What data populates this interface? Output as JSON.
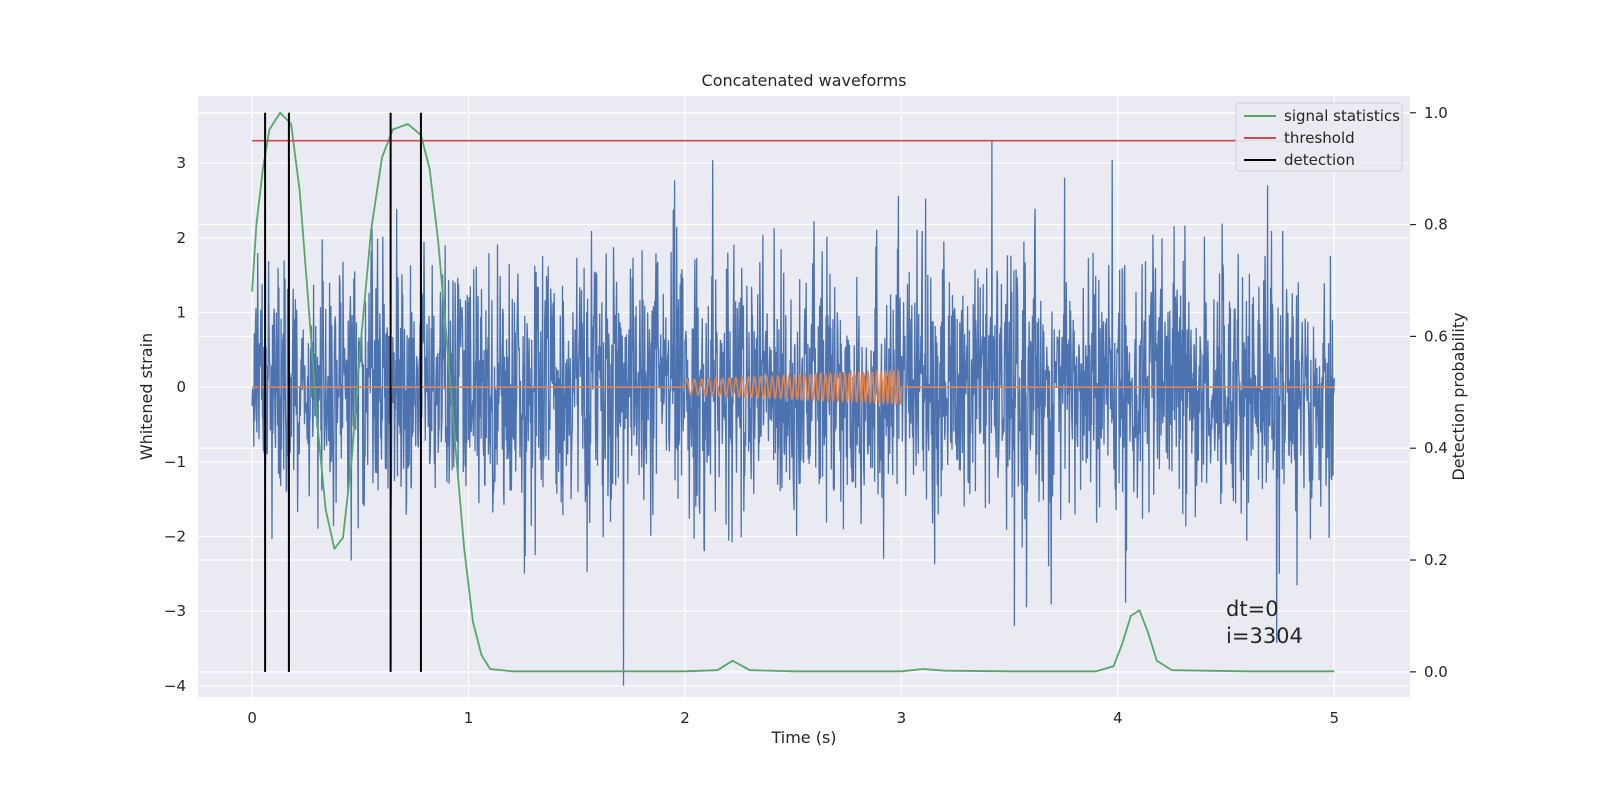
{
  "chart_data": {
    "type": "line",
    "title": "Concatenated waveforms",
    "xlabel": "Time (s)",
    "ylabel": "Whitened strain",
    "y2label": "Detection probability",
    "xlim": [
      -0.25,
      5.35
    ],
    "ylim": [
      -4.15,
      3.9
    ],
    "y2lim": [
      -0.045,
      1.03
    ],
    "xticks": [
      0,
      1,
      2,
      3,
      4,
      5
    ],
    "yticks": [
      -4,
      -3,
      -2,
      -1,
      0,
      1,
      2,
      3
    ],
    "y2ticks": [
      0.0,
      0.2,
      0.4,
      0.6,
      0.8,
      1.0
    ],
    "y2tick_labels": [
      "0.0",
      "0.2",
      "0.4",
      "0.6",
      "0.8",
      "1.0"
    ],
    "grid": true,
    "legend_position": "top-right",
    "colors": {
      "strain": "#4c72b0",
      "injected": "#dd8452",
      "signal": "#55a868",
      "threshold": "#c44e52",
      "detection": "#000000",
      "background": "#eaeaf2"
    },
    "series": [
      {
        "id": "whitened_strain",
        "axis": "left",
        "x_range": [
          0,
          5
        ],
        "approx_std": 0.85,
        "approx_max": 3.6,
        "approx_min": -4.0
      },
      {
        "id": "injected_chirp",
        "axis": "left",
        "x_range": [
          2.0,
          3.0
        ],
        "amplitude_start": 0.1,
        "amplitude_end": 0.22,
        "cycles": 40
      },
      {
        "name": "signal statistics",
        "axis": "right",
        "x": [
          0,
          0.02,
          0.05,
          0.08,
          0.13,
          0.18,
          0.22,
          0.26,
          0.3,
          0.34,
          0.38,
          0.42,
          0.46,
          0.5,
          0.55,
          0.6,
          0.65,
          0.72,
          0.78,
          0.82,
          0.86,
          0.9,
          0.94,
          0.98,
          1.02,
          1.06,
          1.1,
          1.2,
          1.5,
          2.0,
          2.15,
          2.22,
          2.3,
          2.5,
          3.0,
          3.1,
          3.2,
          3.5,
          3.9,
          3.98,
          4.02,
          4.06,
          4.1,
          4.14,
          4.18,
          4.25,
          4.6,
          5.0
        ],
        "y": [
          0.68,
          0.8,
          0.9,
          0.97,
          1.0,
          0.98,
          0.86,
          0.66,
          0.45,
          0.29,
          0.22,
          0.24,
          0.38,
          0.58,
          0.79,
          0.92,
          0.97,
          0.98,
          0.96,
          0.9,
          0.77,
          0.59,
          0.4,
          0.22,
          0.09,
          0.03,
          0.005,
          0.001,
          0.001,
          0.001,
          0.003,
          0.02,
          0.003,
          0.001,
          0.001,
          0.005,
          0.002,
          0.001,
          0.001,
          0.01,
          0.05,
          0.1,
          0.11,
          0.07,
          0.02,
          0.003,
          0.001,
          0.001
        ]
      },
      {
        "name": "threshold",
        "axis": "right",
        "x": [
          0,
          5
        ],
        "y": [
          0.95,
          0.95
        ]
      },
      {
        "name": "detection",
        "axis": "right",
        "x": [
          0.06,
          0.17,
          0.64,
          0.78
        ],
        "y_range": [
          0.0,
          1.0
        ]
      }
    ],
    "legend": [
      {
        "label": "signal statistics",
        "color": "#55a868"
      },
      {
        "label": "threshold",
        "color": "#c44e52"
      },
      {
        "label": "detection",
        "color": "#000000"
      }
    ],
    "annotations": [
      "dt=0",
      "i=3304"
    ]
  }
}
